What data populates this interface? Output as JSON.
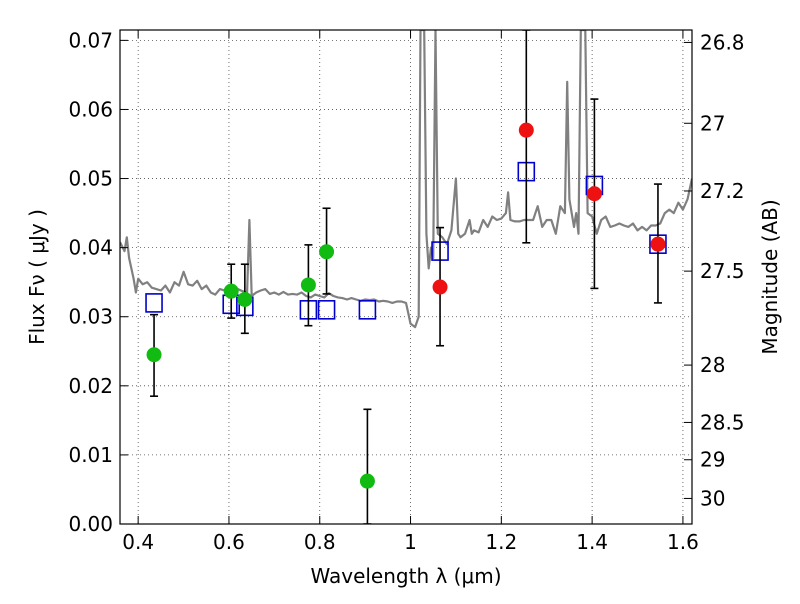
{
  "chart_data": {
    "type": "scatter",
    "title": "",
    "xlabel": "Wavelength  λ (μm)",
    "ylabel": "Flux  Fν  ( μJy )",
    "y2label": "Magnitude (AB)",
    "xlim": [
      0.36,
      1.62
    ],
    "ylim": [
      0.0,
      0.0715
    ],
    "grid": true,
    "legend": "none",
    "x_ticks": [
      0.4,
      0.6,
      0.8,
      1.0,
      1.2,
      1.4,
      1.6
    ],
    "x_tick_labels": [
      "0.4",
      "0.6",
      "0.8",
      "1",
      "1.2",
      "1.4",
      "1.6"
    ],
    "y_ticks": [
      0.0,
      0.01,
      0.02,
      0.03,
      0.04,
      0.05,
      0.06,
      0.07
    ],
    "y_tick_labels": [
      "0.00",
      "0.01",
      "0.02",
      "0.03",
      "0.04",
      "0.05",
      "0.06",
      "0.07"
    ],
    "y2_ticks": [
      {
        "label": "26.8",
        "flux": 0.0697
      },
      {
        "label": "27",
        "flux": 0.058
      },
      {
        "label": "27.2",
        "flux": 0.0482
      },
      {
        "label": "27.5",
        "flux": 0.0366
      },
      {
        "label": "28",
        "flux": 0.023
      },
      {
        "label": "28.5",
        "flux": 0.0147
      },
      {
        "label": "29",
        "flux": 0.0093
      },
      {
        "label": "30",
        "flux": 0.0037
      }
    ],
    "colors": {
      "model": "#808080",
      "model_fit": "#0000cc",
      "hst": "#11bb11",
      "nir": "#ee1111",
      "errorbar": "#000000"
    },
    "series": [
      {
        "type": "line",
        "points": [
          [
            0.36,
            0.0408
          ],
          [
            0.37,
            0.0395
          ],
          [
            0.375,
            0.0415
          ],
          [
            0.38,
            0.0385
          ],
          [
            0.39,
            0.0355
          ],
          [
            0.395,
            0.0335
          ],
          [
            0.4,
            0.0355
          ],
          [
            0.41,
            0.0347
          ],
          [
            0.42,
            0.035
          ],
          [
            0.43,
            0.0342
          ],
          [
            0.44,
            0.034
          ],
          [
            0.45,
            0.0338
          ],
          [
            0.46,
            0.0345
          ],
          [
            0.47,
            0.0335
          ],
          [
            0.48,
            0.035
          ],
          [
            0.49,
            0.0345
          ],
          [
            0.5,
            0.0365
          ],
          [
            0.51,
            0.0347
          ],
          [
            0.52,
            0.0345
          ],
          [
            0.53,
            0.0352
          ],
          [
            0.54,
            0.034
          ],
          [
            0.55,
            0.0345
          ],
          [
            0.56,
            0.0335
          ],
          [
            0.57,
            0.0332
          ],
          [
            0.58,
            0.034
          ],
          [
            0.59,
            0.0338
          ],
          [
            0.6,
            0.0337
          ],
          [
            0.61,
            0.0332
          ],
          [
            0.62,
            0.034
          ],
          [
            0.63,
            0.0337
          ],
          [
            0.64,
            0.0335
          ],
          [
            0.645,
            0.044
          ],
          [
            0.65,
            0.033
          ],
          [
            0.66,
            0.0335
          ],
          [
            0.67,
            0.0338
          ],
          [
            0.68,
            0.034
          ],
          [
            0.69,
            0.0333
          ],
          [
            0.7,
            0.0335
          ],
          [
            0.71,
            0.0332
          ],
          [
            0.72,
            0.0336
          ],
          [
            0.73,
            0.0332
          ],
          [
            0.74,
            0.0333
          ],
          [
            0.75,
            0.0332
          ],
          [
            0.76,
            0.0335
          ],
          [
            0.77,
            0.033
          ],
          [
            0.78,
            0.0328
          ],
          [
            0.79,
            0.0332
          ],
          [
            0.8,
            0.033
          ],
          [
            0.81,
            0.0328
          ],
          [
            0.82,
            0.0334
          ],
          [
            0.83,
            0.033
          ],
          [
            0.84,
            0.0328
          ],
          [
            0.85,
            0.0327
          ],
          [
            0.86,
            0.0325
          ],
          [
            0.87,
            0.0327
          ],
          [
            0.88,
            0.0325
          ],
          [
            0.89,
            0.0323
          ],
          [
            0.9,
            0.0325
          ],
          [
            0.91,
            0.0324
          ],
          [
            0.92,
            0.0325
          ],
          [
            0.93,
            0.0322
          ],
          [
            0.94,
            0.0323
          ],
          [
            0.95,
            0.0322
          ],
          [
            0.96,
            0.032
          ],
          [
            0.97,
            0.0322
          ],
          [
            0.98,
            0.0322
          ],
          [
            0.99,
            0.032
          ],
          [
            0.995,
            0.0305
          ],
          [
            1.0,
            0.029
          ],
          [
            1.01,
            0.0285
          ],
          [
            1.018,
            0.03
          ],
          [
            1.022,
            0.0715
          ],
          [
            1.03,
            0.0715
          ],
          [
            1.035,
            0.042
          ],
          [
            1.04,
            0.037
          ],
          [
            1.045,
            0.04
          ],
          [
            1.05,
            0.0385
          ],
          [
            1.055,
            0.0715
          ],
          [
            1.06,
            0.042
          ],
          [
            1.07,
            0.0415
          ],
          [
            1.08,
            0.0405
          ],
          [
            1.09,
            0.0425
          ],
          [
            1.1,
            0.05
          ],
          [
            1.105,
            0.042
          ],
          [
            1.11,
            0.0415
          ],
          [
            1.12,
            0.042
          ],
          [
            1.13,
            0.044
          ],
          [
            1.135,
            0.042
          ],
          [
            1.14,
            0.0425
          ],
          [
            1.15,
            0.0422
          ],
          [
            1.16,
            0.044
          ],
          [
            1.17,
            0.043
          ],
          [
            1.18,
            0.0445
          ],
          [
            1.19,
            0.044
          ],
          [
            1.2,
            0.0442
          ],
          [
            1.21,
            0.045
          ],
          [
            1.215,
            0.048
          ],
          [
            1.22,
            0.044
          ],
          [
            1.23,
            0.0438
          ],
          [
            1.24,
            0.0438
          ],
          [
            1.25,
            0.044
          ],
          [
            1.26,
            0.044
          ],
          [
            1.27,
            0.044
          ],
          [
            1.28,
            0.046
          ],
          [
            1.29,
            0.043
          ],
          [
            1.3,
            0.044
          ],
          [
            1.31,
            0.044
          ],
          [
            1.32,
            0.042
          ],
          [
            1.33,
            0.046
          ],
          [
            1.34,
            0.045
          ],
          [
            1.345,
            0.064
          ],
          [
            1.35,
            0.047
          ],
          [
            1.36,
            0.043
          ],
          [
            1.365,
            0.045
          ],
          [
            1.37,
            0.042
          ],
          [
            1.375,
            0.0715
          ],
          [
            1.385,
            0.0715
          ],
          [
            1.39,
            0.045
          ],
          [
            1.4,
            0.0445
          ],
          [
            1.41,
            0.042
          ],
          [
            1.42,
            0.044
          ],
          [
            1.43,
            0.0445
          ],
          [
            1.44,
            0.043
          ],
          [
            1.45,
            0.0432
          ],
          [
            1.46,
            0.0435
          ],
          [
            1.47,
            0.0432
          ],
          [
            1.48,
            0.043
          ],
          [
            1.49,
            0.0435
          ],
          [
            1.5,
            0.0425
          ],
          [
            1.51,
            0.043
          ],
          [
            1.52,
            0.0425
          ],
          [
            1.53,
            0.0432
          ],
          [
            1.54,
            0.0432
          ],
          [
            1.55,
            0.0435
          ],
          [
            1.56,
            0.045
          ],
          [
            1.57,
            0.0455
          ],
          [
            1.58,
            0.045
          ],
          [
            1.59,
            0.0465
          ],
          [
            1.6,
            0.0455
          ],
          [
            1.61,
            0.047
          ],
          [
            1.62,
            0.05
          ]
        ]
      },
      {
        "type": "scatter",
        "marker": "square-open",
        "points": [
          [
            0.435,
            0.032
          ],
          [
            0.605,
            0.0318
          ],
          [
            0.635,
            0.0315
          ],
          [
            0.775,
            0.031
          ],
          [
            0.815,
            0.031
          ],
          [
            0.905,
            0.031
          ],
          [
            1.065,
            0.0395
          ],
          [
            1.255,
            0.051
          ],
          [
            1.405,
            0.049
          ],
          [
            1.545,
            0.0405
          ]
        ]
      },
      {
        "type": "scatter",
        "marker": "circle-filled",
        "points": [
          {
            "x": 0.435,
            "y": 0.0245,
            "lo": 0.0185,
            "hi": 0.0303
          },
          {
            "x": 0.605,
            "y": 0.0337,
            "lo": 0.0298,
            "hi": 0.0376
          },
          {
            "x": 0.635,
            "y": 0.0325,
            "lo": 0.0276,
            "hi": 0.0376
          },
          {
            "x": 0.775,
            "y": 0.0346,
            "lo": 0.0287,
            "hi": 0.0404
          },
          {
            "x": 0.815,
            "y": 0.0394,
            "lo": 0.0333,
            "hi": 0.0457
          },
          {
            "x": 0.905,
            "y": 0.0062,
            "lo": 0.0,
            "hi": 0.0166
          }
        ]
      },
      {
        "type": "scatter",
        "marker": "circle-filled",
        "points": [
          {
            "x": 1.065,
            "y": 0.0343,
            "lo": 0.0258,
            "hi": 0.0429
          },
          {
            "x": 1.255,
            "y": 0.057,
            "lo": 0.0407,
            "hi": 0.0715
          },
          {
            "x": 1.405,
            "y": 0.0478,
            "lo": 0.0341,
            "hi": 0.0615
          },
          {
            "x": 1.545,
            "y": 0.0405,
            "lo": 0.032,
            "hi": 0.0492
          }
        ]
      }
    ]
  }
}
